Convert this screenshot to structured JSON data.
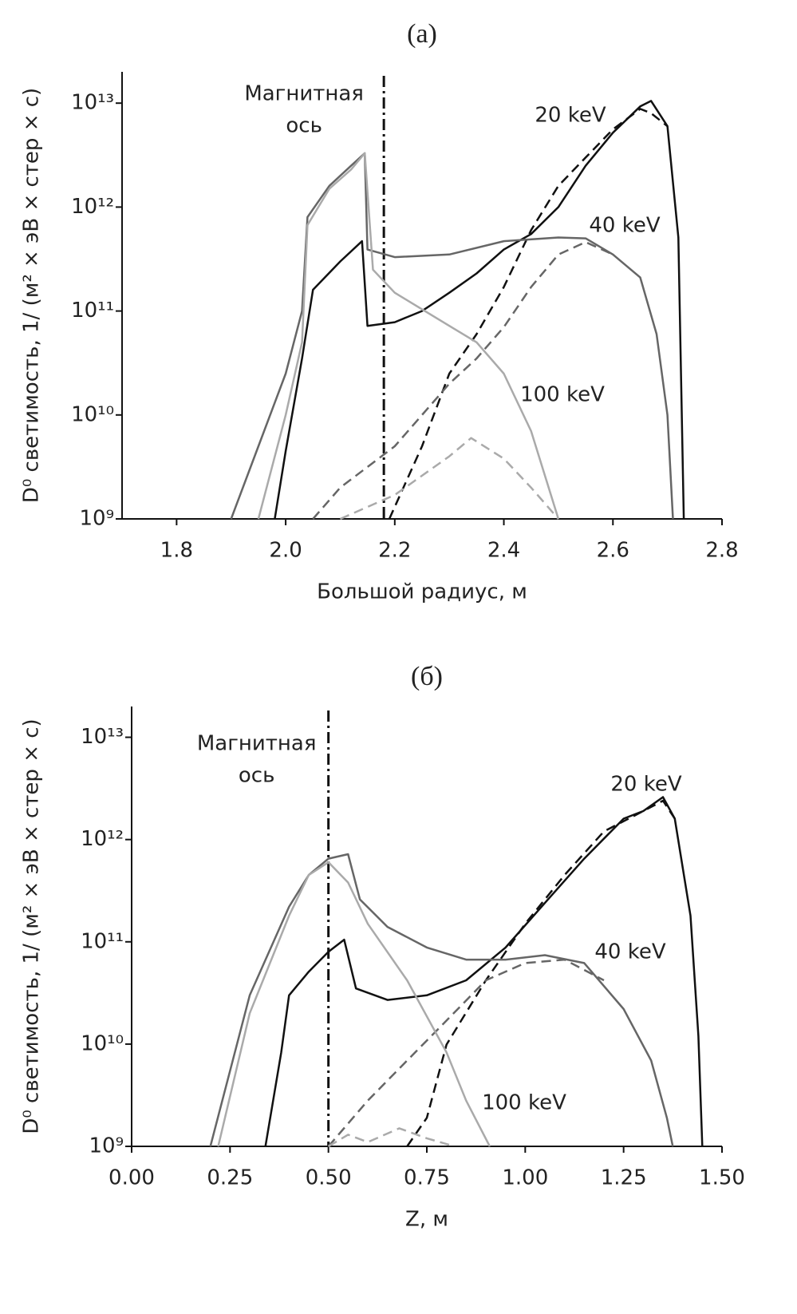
{
  "chart_data": [
    {
      "type": "line",
      "title": "(a)",
      "x_label": "Большой радиус, м",
      "y_label": "D⁰ светимость, 1/ (м² × эВ × стер × с)",
      "log_y": true,
      "xlim": [
        1.7,
        2.8
      ],
      "ylim": [
        1000000000.0,
        20000000000000.0
      ],
      "xticks": [
        1.8,
        {
          "value": 2.0,
          "label": "2.0"
        },
        2.2,
        2.4,
        2.6,
        2.8
      ],
      "yticks": [
        {
          "value": 1000000000.0,
          "label": "10⁹"
        },
        {
          "value": 10000000000.0,
          "label": "10¹⁰"
        },
        {
          "value": 100000000000.0,
          "label": "10¹¹"
        },
        {
          "value": 1000000000000.0,
          "label": "10¹²"
        },
        {
          "value": 10000000000000.0,
          "label": "10¹³"
        }
      ],
      "annotation": {
        "lines": [
          "Магнитная",
          "ось"
        ],
        "x": 2.18
      },
      "series": [
        {
          "name": "20 keV",
          "color": "#111111",
          "dash": false,
          "x": [
            1.98,
            2.0,
            2.03,
            2.05,
            2.1,
            2.14,
            2.15,
            2.2,
            2.25,
            2.3,
            2.35,
            2.4,
            2.45,
            2.5,
            2.55,
            2.6,
            2.65,
            2.67,
            2.7,
            2.72,
            2.73
          ],
          "values": [
            1000000000.0,
            4500000000.0,
            35000000000.0,
            160000000000.0,
            300000000000.0,
            470000000000.0,
            72000000000.0,
            78000000000.0,
            100000000000.0,
            150000000000.0,
            230000000000.0,
            390000000000.0,
            550000000000.0,
            1000000000000.0,
            2500000000000.0,
            5200000000000.0,
            9300000000000.0,
            10500000000000.0,
            6000000000000.0,
            510000000000.0,
            1000000000.0
          ]
        },
        {
          "color": "#111111",
          "dash": true,
          "x": [
            2.19,
            2.25,
            2.3,
            2.35,
            2.4,
            2.45,
            2.5,
            2.55,
            2.6,
            2.65,
            2.67,
            2.7
          ],
          "values": [
            1000000000.0,
            5000000000.0,
            25000000000.0,
            60000000000.0,
            170000000000.0,
            600000000000.0,
            1600000000000.0,
            3000000000000.0,
            5600000000000.0,
            8800000000000.0,
            8000000000000.0,
            6000000000000.0
          ]
        },
        {
          "name": "40 keV",
          "color": "#666666",
          "dash": false,
          "x": [
            1.9,
            1.95,
            2.0,
            2.03,
            2.04,
            2.08,
            2.12,
            2.145,
            2.15,
            2.2,
            2.3,
            2.4,
            2.5,
            2.55,
            2.6,
            2.65,
            2.68,
            2.7,
            2.71
          ],
          "values": [
            1000000000.0,
            5000000000.0,
            25000000000.0,
            100000000000.0,
            800000000000.0,
            1600000000000.0,
            2500000000000.0,
            3300000000000.0,
            390000000000.0,
            330000000000.0,
            350000000000.0,
            470000000000.0,
            510000000000.0,
            500000000000.0,
            350000000000.0,
            210000000000.0,
            60000000000.0,
            10000000000.0,
            1000000000.0
          ]
        },
        {
          "color": "#666666",
          "dash": true,
          "x": [
            2.05,
            2.1,
            2.2,
            2.25,
            2.3,
            2.35,
            2.4,
            2.45,
            2.5,
            2.55,
            2.6
          ],
          "values": [
            1000000000.0,
            2000000000.0,
            5000000000.0,
            10000000000.0,
            20000000000.0,
            35000000000.0,
            70000000000.0,
            170000000000.0,
            350000000000.0,
            460000000000.0,
            350000000000.0
          ]
        },
        {
          "name": "100 keV",
          "color": "#aaaaaa",
          "dash": false,
          "x": [
            1.95,
            2.0,
            2.03,
            2.04,
            2.08,
            2.12,
            2.145,
            2.16,
            2.2,
            2.3,
            2.35,
            2.4,
            2.45,
            2.5
          ],
          "values": [
            1000000000.0,
            10000000000.0,
            50000000000.0,
            670000000000.0,
            1500000000000.0,
            2300000000000.0,
            3300000000000.0,
            250000000000.0,
            150000000000.0,
            72000000000.0,
            50000000000.0,
            25000000000.0,
            7000000000.0,
            1000000000.0
          ]
        },
        {
          "color": "#aaaaaa",
          "dash": true,
          "x": [
            2.1,
            2.2,
            2.3,
            2.34,
            2.4,
            2.45,
            2.5
          ],
          "values": [
            1000000000.0,
            1700000000.0,
            4000000000.0,
            6000000000.0,
            3800000000.0,
            2000000000.0,
            1000000000.0
          ]
        }
      ]
    },
    {
      "type": "line",
      "title": "(б)",
      "x_label": "Z, м",
      "y_label": "D⁰ светимость, 1/ (м² × эВ × стер × с)",
      "log_y": true,
      "xlim": [
        0,
        1.5
      ],
      "ylim": [
        1000000000.0,
        20000000000000.0
      ],
      "xticks": [
        {
          "value": 0,
          "label": "0.00"
        },
        0.25,
        {
          "value": 0.5,
          "label": "0.50"
        },
        0.75,
        {
          "value": 1.0,
          "label": "1.00"
        },
        1.25,
        {
          "value": 1.5,
          "label": "1.50"
        }
      ],
      "yticks": [
        {
          "value": 1000000000.0,
          "label": "10⁹"
        },
        {
          "value": 10000000000.0,
          "label": "10¹⁰"
        },
        {
          "value": 100000000000.0,
          "label": "10¹¹"
        },
        {
          "value": 1000000000000.0,
          "label": "10¹²"
        },
        {
          "value": 10000000000000.0,
          "label": "10¹³"
        }
      ],
      "annotation": {
        "lines": [
          "Магнитная",
          "ось"
        ],
        "x": 0.5
      },
      "series": [
        {
          "name": "20 keV",
          "color": "#111111",
          "dash": false,
          "x": [
            0.34,
            0.38,
            0.4,
            0.45,
            0.5,
            0.54,
            0.57,
            0.65,
            0.75,
            0.85,
            0.95,
            1.05,
            1.15,
            1.25,
            1.3,
            1.35,
            1.38,
            1.42,
            1.44,
            1.45
          ],
          "values": [
            1000000000.0,
            8300000000.0,
            30000000000.0,
            51000000000.0,
            80000000000.0,
            105000000000.0,
            35000000000.0,
            27000000000.0,
            30000000000.0,
            42000000000.0,
            88000000000.0,
            240000000000.0,
            650000000000.0,
            1600000000000.0,
            1900000000000.0,
            2600000000000.0,
            1600000000000.0,
            180000000000.0,
            12000000000.0,
            1000000000.0
          ]
        },
        {
          "color": "#111111",
          "dash": true,
          "x": [
            0.7,
            0.75,
            0.8,
            0.9,
            1.0,
            1.1,
            1.2,
            1.3,
            1.35,
            1.38
          ],
          "values": [
            1000000000.0,
            1900000000.0,
            9900000000.0,
            42000000000.0,
            150000000000.0,
            450000000000.0,
            1200000000000.0,
            1900000000000.0,
            2400000000000.0,
            1600000000000.0
          ]
        },
        {
          "name": "40 keV",
          "color": "#666666",
          "dash": false,
          "x": [
            0.2,
            0.3,
            0.4,
            0.45,
            0.5,
            0.55,
            0.58,
            0.65,
            0.75,
            0.85,
            0.95,
            1.05,
            1.15,
            1.25,
            1.32,
            1.36,
            1.375
          ],
          "values": [
            1000000000.0,
            30000000000.0,
            220000000000.0,
            450000000000.0,
            650000000000.0,
            720000000000.0,
            260000000000.0,
            140000000000.0,
            88000000000.0,
            67000000000.0,
            67000000000.0,
            74000000000.0,
            62000000000.0,
            22000000000.0,
            6900000000.0,
            1900000000.0,
            1000000000.0
          ]
        },
        {
          "color": "#666666",
          "dash": true,
          "x": [
            0.5,
            0.6,
            0.7,
            0.8,
            0.9,
            1.0,
            1.1,
            1.2
          ],
          "values": [
            1000000000.0,
            2800000000.0,
            6900000000.0,
            17000000000.0,
            42000000000.0,
            62000000000.0,
            67000000000.0,
            42000000000.0
          ]
        },
        {
          "name": "100 keV",
          "color": "#aaaaaa",
          "dash": false,
          "x": [
            0.22,
            0.3,
            0.4,
            0.45,
            0.5,
            0.55,
            0.6,
            0.7,
            0.8,
            0.85,
            0.91
          ],
          "values": [
            1000000000.0,
            20000000000.0,
            180000000000.0,
            450000000000.0,
            600000000000.0,
            380000000000.0,
            150000000000.0,
            42000000000.0,
            8300000000.0,
            2800000000.0,
            1000000000.0
          ]
        },
        {
          "color": "#aaaaaa",
          "dash": true,
          "x": [
            0.5,
            0.55,
            0.6,
            0.68,
            0.75,
            0.82
          ],
          "values": [
            1000000000.0,
            1300000000.0,
            1100000000.0,
            1500000000.0,
            1200000000.0,
            1000000000.0
          ]
        }
      ]
    }
  ]
}
